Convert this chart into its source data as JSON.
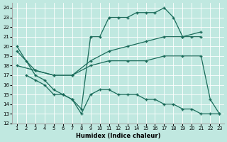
{
  "xlabel": "Humidex (Indice chaleur)",
  "bg_color": "#c0e8e0",
  "grid_color": "#ffffff",
  "line_color": "#1a6b5a",
  "xlim": [
    0.5,
    23.5
  ],
  "ylim": [
    12,
    24.5
  ],
  "yticks": [
    12,
    13,
    14,
    15,
    16,
    17,
    18,
    19,
    20,
    21,
    22,
    23,
    24
  ],
  "xticks": [
    1,
    2,
    3,
    4,
    5,
    6,
    7,
    8,
    9,
    10,
    11,
    12,
    13,
    14,
    15,
    16,
    17,
    18,
    19,
    20,
    21,
    22,
    23
  ],
  "line1_x": [
    1,
    2,
    3,
    4,
    5,
    6,
    7,
    8,
    9,
    10,
    11,
    12,
    13,
    14,
    15,
    16,
    17,
    18,
    19,
    20,
    21
  ],
  "line1_y": [
    20.0,
    18.5,
    17.0,
    16.5,
    15.5,
    15.0,
    14.5,
    13.5,
    21.0,
    21.0,
    23.0,
    23.0,
    23.0,
    23.5,
    23.5,
    23.5,
    24.0,
    23.0,
    21.0,
    21.0,
    21.0
  ],
  "line2_x": [
    1,
    3,
    5,
    7,
    9,
    11,
    13,
    15,
    17,
    19,
    21
  ],
  "line2_y": [
    19.5,
    17.5,
    17.0,
    17.0,
    18.5,
    19.5,
    20.0,
    20.5,
    21.0,
    21.0,
    21.5
  ],
  "line3_x": [
    1,
    3,
    5,
    7,
    9,
    11,
    13,
    15,
    17,
    19,
    21,
    22,
    23
  ],
  "line3_y": [
    18.0,
    17.5,
    17.0,
    17.0,
    18.0,
    18.5,
    18.5,
    18.5,
    19.0,
    19.0,
    19.0,
    14.5,
    13.0
  ],
  "line4_x": [
    2,
    3,
    4,
    5,
    6,
    7,
    8,
    9,
    10,
    11,
    12,
    13,
    14,
    15,
    16,
    17,
    18,
    19,
    20,
    21,
    22,
    23
  ],
  "line4_y": [
    17.0,
    16.5,
    16.0,
    15.0,
    15.0,
    14.5,
    13.0,
    15.0,
    15.5,
    15.5,
    15.0,
    15.0,
    15.0,
    14.5,
    14.5,
    14.0,
    14.0,
    13.5,
    13.5,
    13.0,
    13.0,
    13.0
  ]
}
